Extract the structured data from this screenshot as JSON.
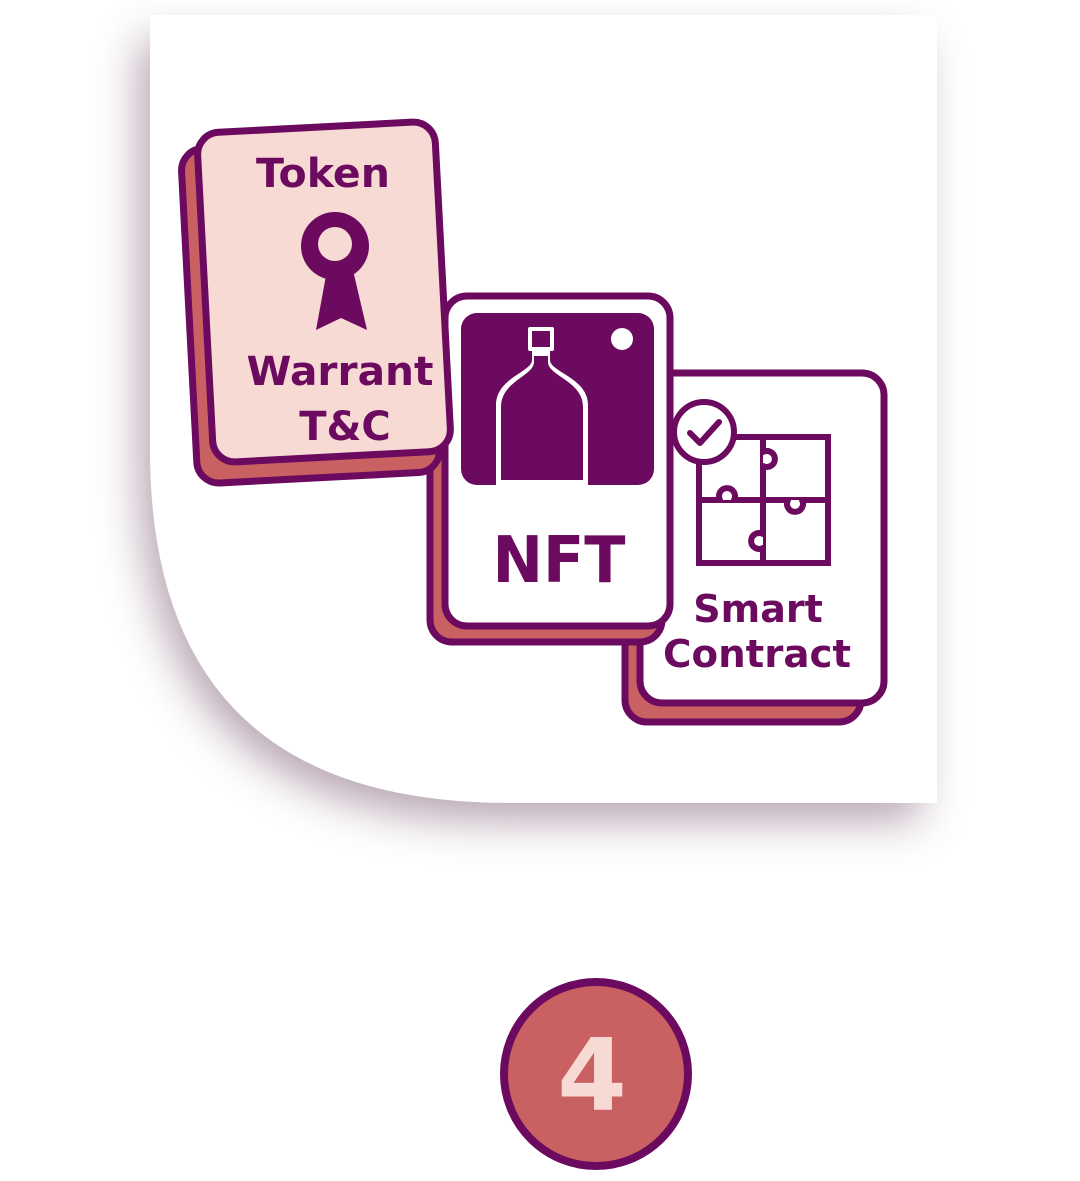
{
  "cards": {
    "token": {
      "title": "Token",
      "line1": "Warrant",
      "line2": "T&C",
      "icon": "award-ribbon-icon"
    },
    "nft": {
      "title": "NFT",
      "icon": "bottle-image-icon"
    },
    "smart_contract": {
      "line1": "Smart",
      "line2": "Contract",
      "icons": [
        "check-circle-icon",
        "puzzle-icon"
      ]
    }
  },
  "step": {
    "number": "4"
  },
  "colors": {
    "plum": "#6b0a5e",
    "card_pink": "#f8dad5",
    "salmon": "#c96163",
    "badge_text": "#f8dad5",
    "panel": "#ffffff",
    "shadow": "#9e8596"
  }
}
